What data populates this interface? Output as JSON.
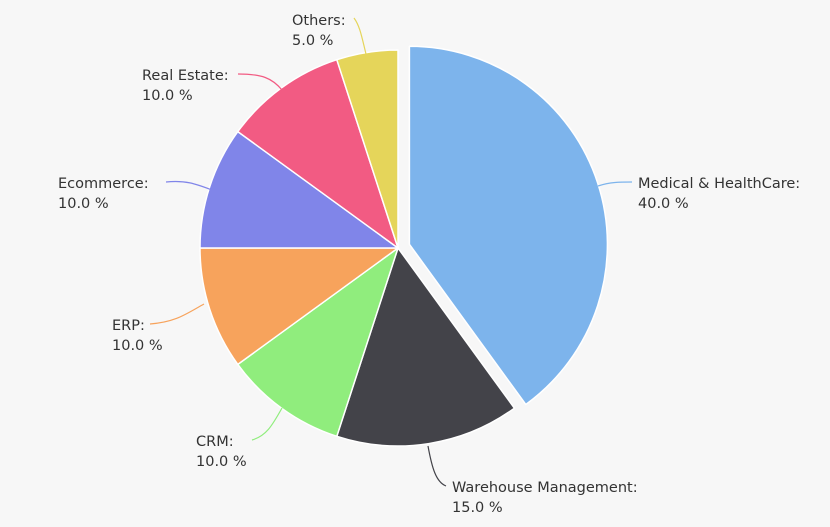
{
  "chart_data": {
    "type": "pie",
    "slices": [
      {
        "label": "Medical & HealthCare:",
        "value": 40.0,
        "value_text": "40.0 %",
        "color": "#7db4ec",
        "exploded": true
      },
      {
        "label": "Warehouse Management:",
        "value": 15.0,
        "value_text": "15.0 %",
        "color": "#434349",
        "exploded": false
      },
      {
        "label": "CRM:",
        "value": 10.0,
        "value_text": "10.0 %",
        "color": "#90ed7d",
        "exploded": false
      },
      {
        "label": "ERP:",
        "value": 10.0,
        "value_text": "10.0 %",
        "color": "#f7a35c",
        "exploded": false
      },
      {
        "label": "Ecommerce:",
        "value": 10.0,
        "value_text": "10.0 %",
        "color": "#8085e9",
        "exploded": false
      },
      {
        "label": "Real Estate:",
        "value": 10.0,
        "value_text": "10.0 %",
        "color": "#f25b83",
        "exploded": false
      },
      {
        "label": "Others:",
        "value": 5.0,
        "value_text": "5.0 %",
        "color": "#e5d55a",
        "exploded": false
      }
    ],
    "start_angle": "top",
    "direction": "clockwise",
    "legend": "none"
  }
}
